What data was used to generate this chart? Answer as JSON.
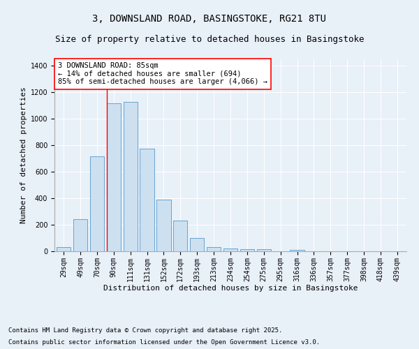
{
  "title_line1": "3, DOWNSLAND ROAD, BASINGSTOKE, RG21 8TU",
  "title_line2": "Size of property relative to detached houses in Basingstoke",
  "xlabel": "Distribution of detached houses by size in Basingstoke",
  "ylabel": "Number of detached properties",
  "categories": [
    "29sqm",
    "49sqm",
    "70sqm",
    "90sqm",
    "111sqm",
    "131sqm",
    "152sqm",
    "172sqm",
    "193sqm",
    "213sqm",
    "234sqm",
    "254sqm",
    "275sqm",
    "295sqm",
    "316sqm",
    "336sqm",
    "357sqm",
    "377sqm",
    "398sqm",
    "418sqm",
    "439sqm"
  ],
  "values": [
    30,
    245,
    715,
    1120,
    1130,
    775,
    390,
    230,
    100,
    30,
    22,
    18,
    15,
    0,
    10,
    0,
    0,
    0,
    0,
    0,
    0
  ],
  "bar_color": "#cce0f0",
  "bar_edge_color": "#5599cc",
  "vline_color": "red",
  "annotation_text": "3 DOWNSLAND ROAD: 85sqm\n← 14% of detached houses are smaller (694)\n85% of semi-detached houses are larger (4,066) →",
  "annotation_box_color": "white",
  "annotation_box_edge_color": "red",
  "ylim": [
    0,
    1450
  ],
  "yticks": [
    0,
    200,
    400,
    600,
    800,
    1000,
    1200,
    1400
  ],
  "background_color": "#e8f0f8",
  "plot_background_color": "#e8f0f8",
  "footer_line1": "Contains HM Land Registry data © Crown copyright and database right 2025.",
  "footer_line2": "Contains public sector information licensed under the Open Government Licence v3.0.",
  "title_fontsize": 10,
  "subtitle_fontsize": 9,
  "axis_label_fontsize": 8,
  "tick_fontsize": 7,
  "annotation_fontsize": 7.5,
  "footer_fontsize": 6.5
}
